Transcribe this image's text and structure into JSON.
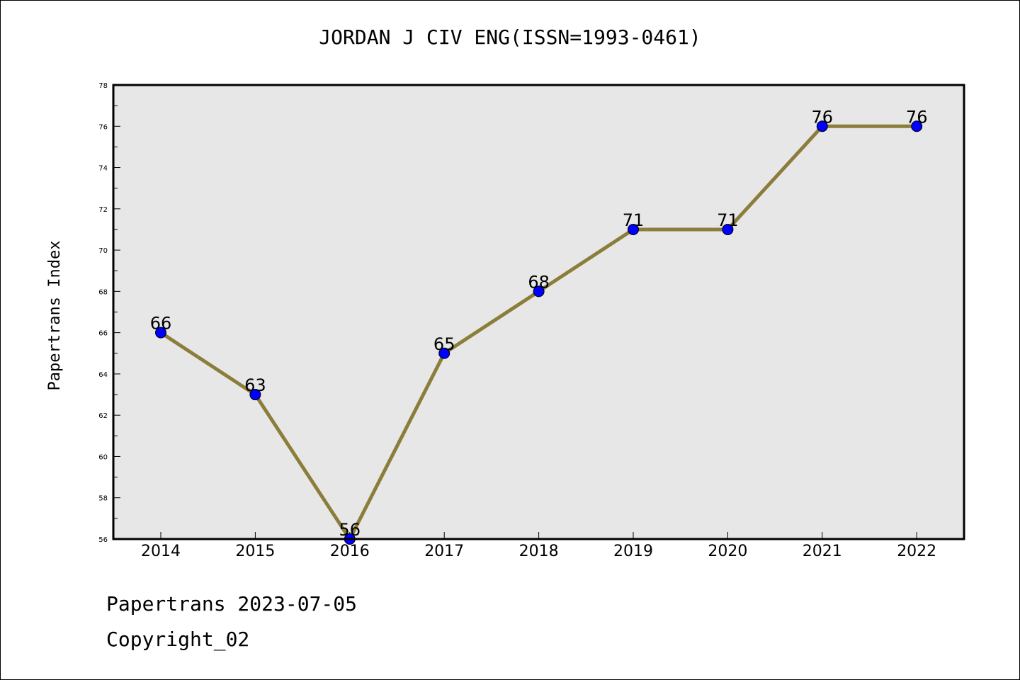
{
  "chart_data": {
    "type": "line",
    "title": "JORDAN J CIV ENG(ISSN=1993-0461)",
    "xlabel": "",
    "ylabel": "Papertrans Index",
    "categories": [
      "2014",
      "2015",
      "2016",
      "2017",
      "2018",
      "2019",
      "2020",
      "2021",
      "2022"
    ],
    "series": [
      {
        "values": [
          66,
          63,
          56,
          65,
          68,
          71,
          71,
          76,
          76
        ]
      }
    ],
    "ylim": [
      56,
      78
    ],
    "yticks": [
      56,
      58,
      60,
      62,
      64,
      66,
      68,
      70,
      72,
      74,
      76,
      78
    ],
    "grid": false,
    "data_labels": true,
    "colors": {
      "line": "#8B7D3A",
      "marker": "#0000FF",
      "plot_bg": "#E7E7E7"
    }
  },
  "footer": {
    "line1": "Papertrans 2023-07-05",
    "line2": "Copyright_02"
  }
}
